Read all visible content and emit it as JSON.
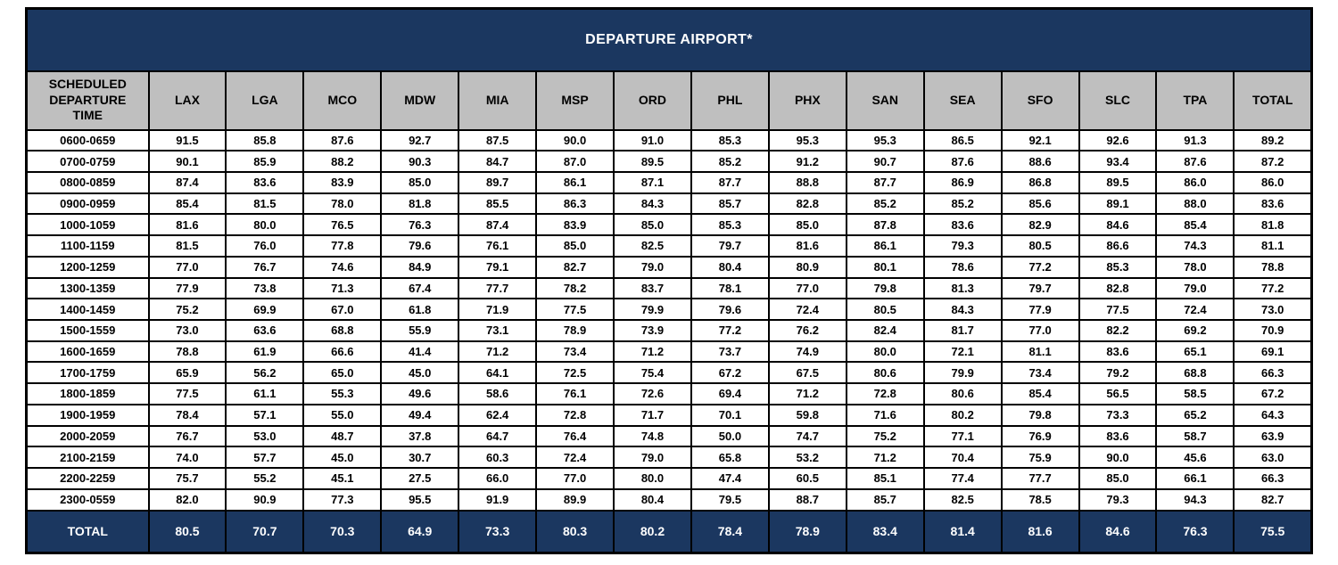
{
  "colors": {
    "header_navy": "#1B3760",
    "column_header_gray": "#BFBFBF",
    "border_black": "#000000",
    "title_text_white": "#FFFFFF"
  },
  "chart_data": {
    "type": "table",
    "title": "DEPARTURE AIRPORT*",
    "row_header_label": "SCHEDULED DEPARTURE TIME",
    "columns": [
      "LAX",
      "LGA",
      "MCO",
      "MDW",
      "MIA",
      "MSP",
      "ORD",
      "PHL",
      "PHX",
      "SAN",
      "SEA",
      "SFO",
      "SLC",
      "TPA",
      "TOTAL"
    ],
    "rows": [
      {
        "time": "0600-0659",
        "values": [
          91.5,
          85.8,
          87.6,
          92.7,
          87.5,
          90.0,
          91.0,
          85.3,
          95.3,
          95.3,
          86.5,
          92.1,
          92.6,
          91.3,
          89.2
        ]
      },
      {
        "time": "0700-0759",
        "values": [
          90.1,
          85.9,
          88.2,
          90.3,
          84.7,
          87.0,
          89.5,
          85.2,
          91.2,
          90.7,
          87.6,
          88.6,
          93.4,
          87.6,
          87.2
        ]
      },
      {
        "time": "0800-0859",
        "values": [
          87.4,
          83.6,
          83.9,
          85.0,
          89.7,
          86.1,
          87.1,
          87.7,
          88.8,
          87.7,
          86.9,
          86.8,
          89.5,
          86.0,
          86.0
        ]
      },
      {
        "time": "0900-0959",
        "values": [
          85.4,
          81.5,
          78.0,
          81.8,
          85.5,
          86.3,
          84.3,
          85.7,
          82.8,
          85.2,
          85.2,
          85.6,
          89.1,
          88.0,
          83.6
        ]
      },
      {
        "time": "1000-1059",
        "values": [
          81.6,
          80.0,
          76.5,
          76.3,
          87.4,
          83.9,
          85.0,
          85.3,
          85.0,
          87.8,
          83.6,
          82.9,
          84.6,
          85.4,
          81.8
        ]
      },
      {
        "time": "1100-1159",
        "values": [
          81.5,
          76.0,
          77.8,
          79.6,
          76.1,
          85.0,
          82.5,
          79.7,
          81.6,
          86.1,
          79.3,
          80.5,
          86.6,
          74.3,
          81.1
        ]
      },
      {
        "time": "1200-1259",
        "values": [
          77.0,
          76.7,
          74.6,
          84.9,
          79.1,
          82.7,
          79.0,
          80.4,
          80.9,
          80.1,
          78.6,
          77.2,
          85.3,
          78.0,
          78.8
        ]
      },
      {
        "time": "1300-1359",
        "values": [
          77.9,
          73.8,
          71.3,
          67.4,
          77.7,
          78.2,
          83.7,
          78.1,
          77.0,
          79.8,
          81.3,
          79.7,
          82.8,
          79.0,
          77.2
        ]
      },
      {
        "time": "1400-1459",
        "values": [
          75.2,
          69.9,
          67.0,
          61.8,
          71.9,
          77.5,
          79.9,
          79.6,
          72.4,
          80.5,
          84.3,
          77.9,
          77.5,
          72.4,
          73.0
        ]
      },
      {
        "time": "1500-1559",
        "values": [
          73.0,
          63.6,
          68.8,
          55.9,
          73.1,
          78.9,
          73.9,
          77.2,
          76.2,
          82.4,
          81.7,
          77.0,
          82.2,
          69.2,
          70.9
        ]
      },
      {
        "time": "1600-1659",
        "values": [
          78.8,
          61.9,
          66.6,
          41.4,
          71.2,
          73.4,
          71.2,
          73.7,
          74.9,
          80.0,
          72.1,
          81.1,
          83.6,
          65.1,
          69.1
        ]
      },
      {
        "time": "1700-1759",
        "values": [
          65.9,
          56.2,
          65.0,
          45.0,
          64.1,
          72.5,
          75.4,
          67.2,
          67.5,
          80.6,
          79.9,
          73.4,
          79.2,
          68.8,
          66.3
        ]
      },
      {
        "time": "1800-1859",
        "values": [
          77.5,
          61.1,
          55.3,
          49.6,
          58.6,
          76.1,
          72.6,
          69.4,
          71.2,
          72.8,
          80.6,
          85.4,
          56.5,
          58.5,
          67.2
        ]
      },
      {
        "time": "1900-1959",
        "values": [
          78.4,
          57.1,
          55.0,
          49.4,
          62.4,
          72.8,
          71.7,
          70.1,
          59.8,
          71.6,
          80.2,
          79.8,
          73.3,
          65.2,
          64.3
        ]
      },
      {
        "time": "2000-2059",
        "values": [
          76.7,
          53.0,
          48.7,
          37.8,
          64.7,
          76.4,
          74.8,
          50.0,
          74.7,
          75.2,
          77.1,
          76.9,
          83.6,
          58.7,
          63.9
        ]
      },
      {
        "time": "2100-2159",
        "values": [
          74.0,
          57.7,
          45.0,
          30.7,
          60.3,
          72.4,
          79.0,
          65.8,
          53.2,
          71.2,
          70.4,
          75.9,
          90.0,
          45.6,
          63.0
        ]
      },
      {
        "time": "2200-2259",
        "values": [
          75.7,
          55.2,
          45.1,
          27.5,
          66.0,
          77.0,
          80.0,
          47.4,
          60.5,
          85.1,
          77.4,
          77.7,
          85.0,
          66.1,
          66.3
        ]
      },
      {
        "time": "2300-0559",
        "values": [
          82.0,
          90.9,
          77.3,
          95.5,
          91.9,
          89.9,
          80.4,
          79.5,
          88.7,
          85.7,
          82.5,
          78.5,
          79.3,
          94.3,
          82.7
        ]
      }
    ],
    "total_row": {
      "label": "TOTAL",
      "values": [
        80.5,
        70.7,
        70.3,
        64.9,
        73.3,
        80.3,
        80.2,
        78.4,
        78.9,
        83.4,
        81.4,
        81.6,
        84.6,
        76.3,
        75.5
      ]
    }
  }
}
